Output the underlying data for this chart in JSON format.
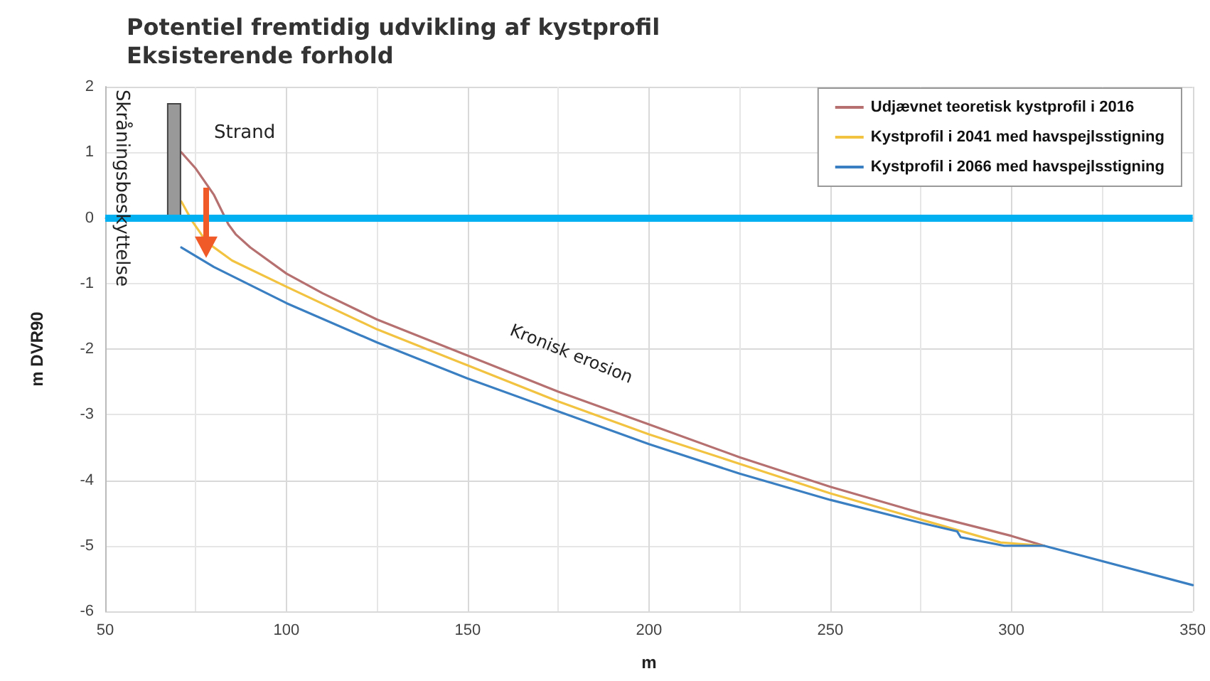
{
  "chart_data": {
    "type": "line",
    "title": "Potentiel fremtidig udvikling af kystprofil",
    "subtitle": "Eksisterende forhold",
    "xlabel": "m",
    "ylabel": "m DVR90",
    "annotations": [
      "Strand",
      "Skråningsbeskyttelse",
      "Kronisk erosion"
    ],
    "xlim": [
      50,
      350
    ],
    "xticks": [
      50,
      100,
      150,
      200,
      250,
      300,
      350
    ],
    "ylim": [
      -6,
      2
    ],
    "yticks": [
      -6,
      -5,
      -4,
      -3,
      -2,
      -1,
      0,
      1,
      2
    ],
    "grid": true,
    "legend": "top right",
    "marker": "none",
    "line_style": "solid",
    "ref_lines": [
      {
        "axis": "y",
        "value": 0,
        "color": "#00b0f0"
      }
    ],
    "series": [
      {
        "type": "bar",
        "color": "#999999",
        "x": [
          69
        ],
        "values": [
          1.75
        ]
      },
      {
        "name": "Udjævnet teoretisk kystprofil i 2016",
        "color": "#b5706f",
        "x": [
          71,
          75,
          80,
          84,
          86,
          90,
          100,
          110,
          125,
          150,
          175,
          200,
          225,
          250,
          275,
          300,
          309
        ],
        "values": [
          1.0,
          0.75,
          0.35,
          -0.1,
          -0.25,
          -0.45,
          -0.85,
          -1.15,
          -1.55,
          -2.1,
          -2.65,
          -3.15,
          -3.65,
          -4.1,
          -4.5,
          -4.85,
          -5.0
        ]
      },
      {
        "name": "Kystprofil i 2041 med havspejlsstigning",
        "color": "#f2c341",
        "x": [
          71,
          74,
          78,
          85,
          100,
          125,
          150,
          175,
          200,
          225,
          250,
          275,
          297,
          309
        ],
        "values": [
          0.25,
          -0.05,
          -0.37,
          -0.65,
          -1.05,
          -1.7,
          -2.25,
          -2.8,
          -3.3,
          -3.75,
          -4.2,
          -4.6,
          -4.95,
          -5.0
        ]
      },
      {
        "name": "Kystprofil i 2066 med havspejlsstigning",
        "color": "#3a7fc1",
        "x": [
          71,
          80,
          100,
          125,
          150,
          175,
          200,
          225,
          250,
          275,
          285,
          286,
          298,
          309,
          350
        ],
        "values": [
          -0.45,
          -0.75,
          -1.3,
          -1.9,
          -2.45,
          -2.95,
          -3.45,
          -3.9,
          -4.3,
          -4.65,
          -4.78,
          -4.87,
          -5.0,
          -5.0,
          -5.6
        ]
      }
    ]
  }
}
